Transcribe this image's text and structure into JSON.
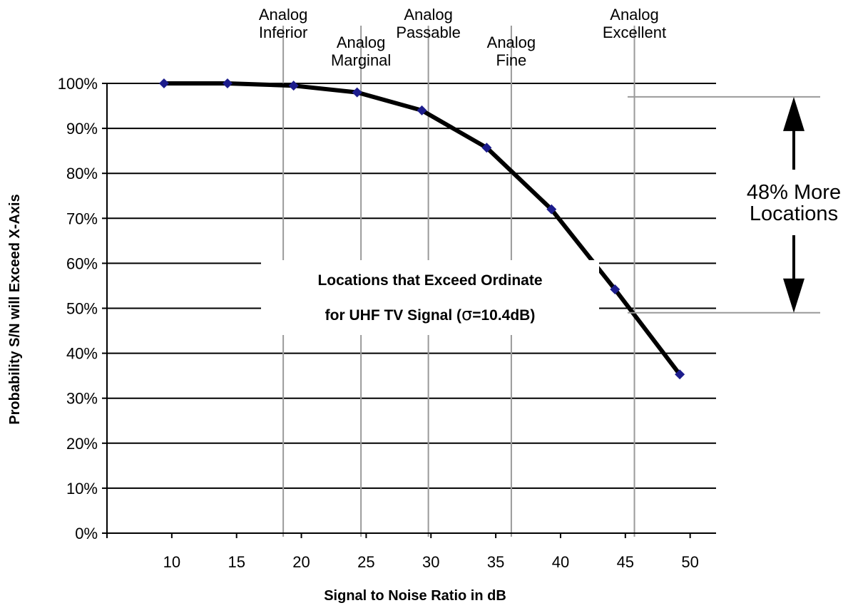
{
  "chart_data": {
    "type": "line",
    "title": "",
    "xlabel": "Signal to Noise Ratio in dB",
    "ylabel": "Probability S/N will Exceed X-Axis",
    "xlim": [
      5,
      52
    ],
    "ylim": [
      0,
      100
    ],
    "x_ticks": [
      10,
      15,
      20,
      25,
      30,
      35,
      40,
      45,
      50
    ],
    "y_ticks": [
      0,
      10,
      20,
      30,
      40,
      50,
      60,
      70,
      80,
      90,
      100
    ],
    "y_tick_labels": [
      "0%",
      "10%",
      "20%",
      "30%",
      "40%",
      "50%",
      "60%",
      "70%",
      "80%",
      "90%",
      "100%"
    ],
    "grid": "horizontal",
    "series": [
      {
        "x": [
          9.4,
          14.3,
          19.4,
          24.3,
          29.3,
          34.3,
          39.3,
          44.2,
          49.2
        ],
        "values": [
          100,
          100,
          99.5,
          98,
          94,
          85.7,
          72,
          54.2,
          35.3
        ],
        "color": "#000000",
        "marker_color": "#1c1c8c"
      }
    ],
    "categories": [
      {
        "x": 18.6,
        "lines": [
          "Analog",
          "Inferior"
        ]
      },
      {
        "x": 24.6,
        "lines": [
          "Analog",
          "Marginal"
        ]
      },
      {
        "x": 29.8,
        "lines": [
          "Analog",
          "Passable"
        ]
      },
      {
        "x": 36.2,
        "lines": [
          "Analog",
          "Fine"
        ]
      },
      {
        "x": 45.7,
        "lines": [
          "Analog",
          "Excellent"
        ]
      }
    ],
    "annotation_box": {
      "line1": "Locations that Exceed Ordinate",
      "line2_prefix": "for UHF TV Signal (",
      "line2_symbol": "σ",
      "line2_suffix": "=10.4dB)"
    },
    "bracket": {
      "top_value": 97,
      "bottom_value": 49,
      "lines": [
        "48% More",
        "Locations"
      ]
    }
  }
}
